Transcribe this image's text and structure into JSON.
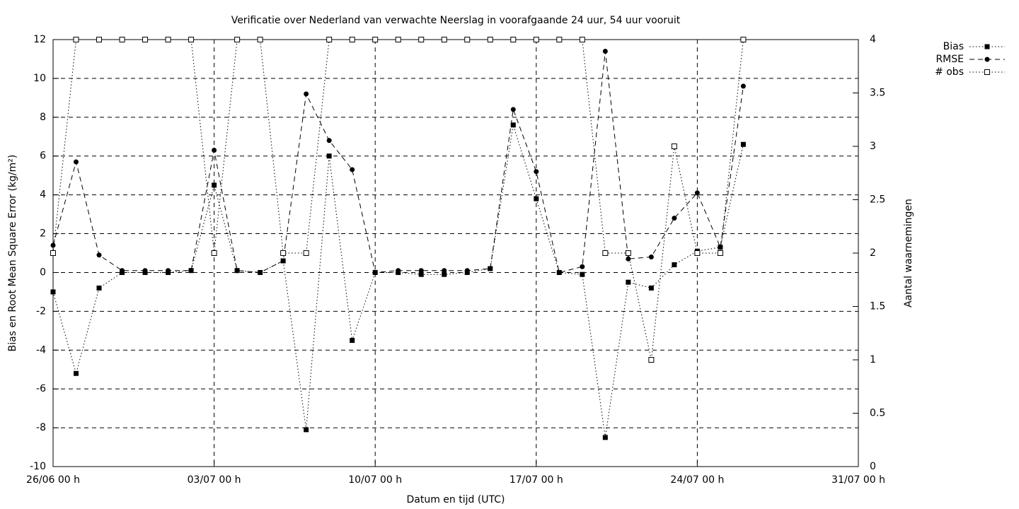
{
  "chart_data": {
    "type": "line",
    "title": "Verificatie over Nederland van verwachte Neerslag in voorafgaande 24 uur, 54 uur vooruit",
    "xlabel": "Datum en tijd (UTC)",
    "ylabel": "Bias en Root Mean Square Error (kg/m²)",
    "y2label": "Aantal waarnemingen",
    "x": [
      0,
      1,
      2,
      3,
      4,
      5,
      6,
      7,
      8,
      9,
      10,
      11,
      12,
      13,
      14,
      15,
      16,
      17,
      18,
      19,
      20,
      21,
      22,
      23,
      24,
      25,
      26,
      27,
      28,
      29,
      30
    ],
    "xlim": [
      0,
      35
    ],
    "xticks": [
      {
        "value": 0,
        "label": "26/06 00 h"
      },
      {
        "value": 7,
        "label": "03/07 00 h"
      },
      {
        "value": 14,
        "label": "10/07 00 h"
      },
      {
        "value": 21,
        "label": "17/07 00 h"
      },
      {
        "value": 28,
        "label": "24/07 00 h"
      },
      {
        "value": 35,
        "label": "31/07 00 h"
      }
    ],
    "ylim": [
      -10,
      12
    ],
    "yticks": [
      -10,
      -8,
      -6,
      -4,
      -2,
      0,
      2,
      4,
      6,
      8,
      10,
      12
    ],
    "y2lim": [
      0,
      4
    ],
    "y2ticks": [
      0,
      0.5,
      1,
      1.5,
      2,
      2.5,
      3,
      3.5,
      4
    ],
    "grid": true,
    "legend": "top-right-outside",
    "series": [
      {
        "name": "Bias",
        "color": "#000000",
        "marker": "filled-square",
        "dash": "dotted",
        "values": [
          -1.0,
          -5.2,
          -0.8,
          0,
          0,
          0,
          0.1,
          4.5,
          0.1,
          0,
          0.6,
          -8.1,
          6.0,
          -3.5,
          0,
          0,
          -0.1,
          -0.1,
          0,
          0.2,
          7.6,
          3.8,
          0,
          -0.1,
          -8.5,
          -0.5,
          -0.8,
          0.4,
          1.1,
          1.3,
          6.6
        ]
      },
      {
        "name": "RMSE",
        "color": "#000000",
        "marker": "filled-circle",
        "dash": "dashed",
        "values": [
          1.4,
          5.7,
          0.9,
          0.1,
          0.1,
          0.1,
          0.1,
          6.3,
          0.1,
          0,
          0.6,
          9.2,
          6.8,
          5.3,
          0,
          0.1,
          0.1,
          0.1,
          0.1,
          0.2,
          8.4,
          5.2,
          0,
          0.3,
          11.4,
          0.7,
          0.8,
          2.8,
          4.1,
          1.3,
          9.6
        ]
      },
      {
        "name": "# obs",
        "color": "#000000",
        "marker": "open-square",
        "dash": "dotted",
        "axis": "y2",
        "values": [
          2,
          4,
          4,
          4,
          4,
          4,
          4,
          2,
          4,
          4,
          2,
          2,
          4,
          4,
          4,
          4,
          4,
          4,
          4,
          4,
          4,
          4,
          4,
          4,
          2,
          2,
          1,
          3,
          2,
          2,
          4
        ]
      }
    ]
  }
}
